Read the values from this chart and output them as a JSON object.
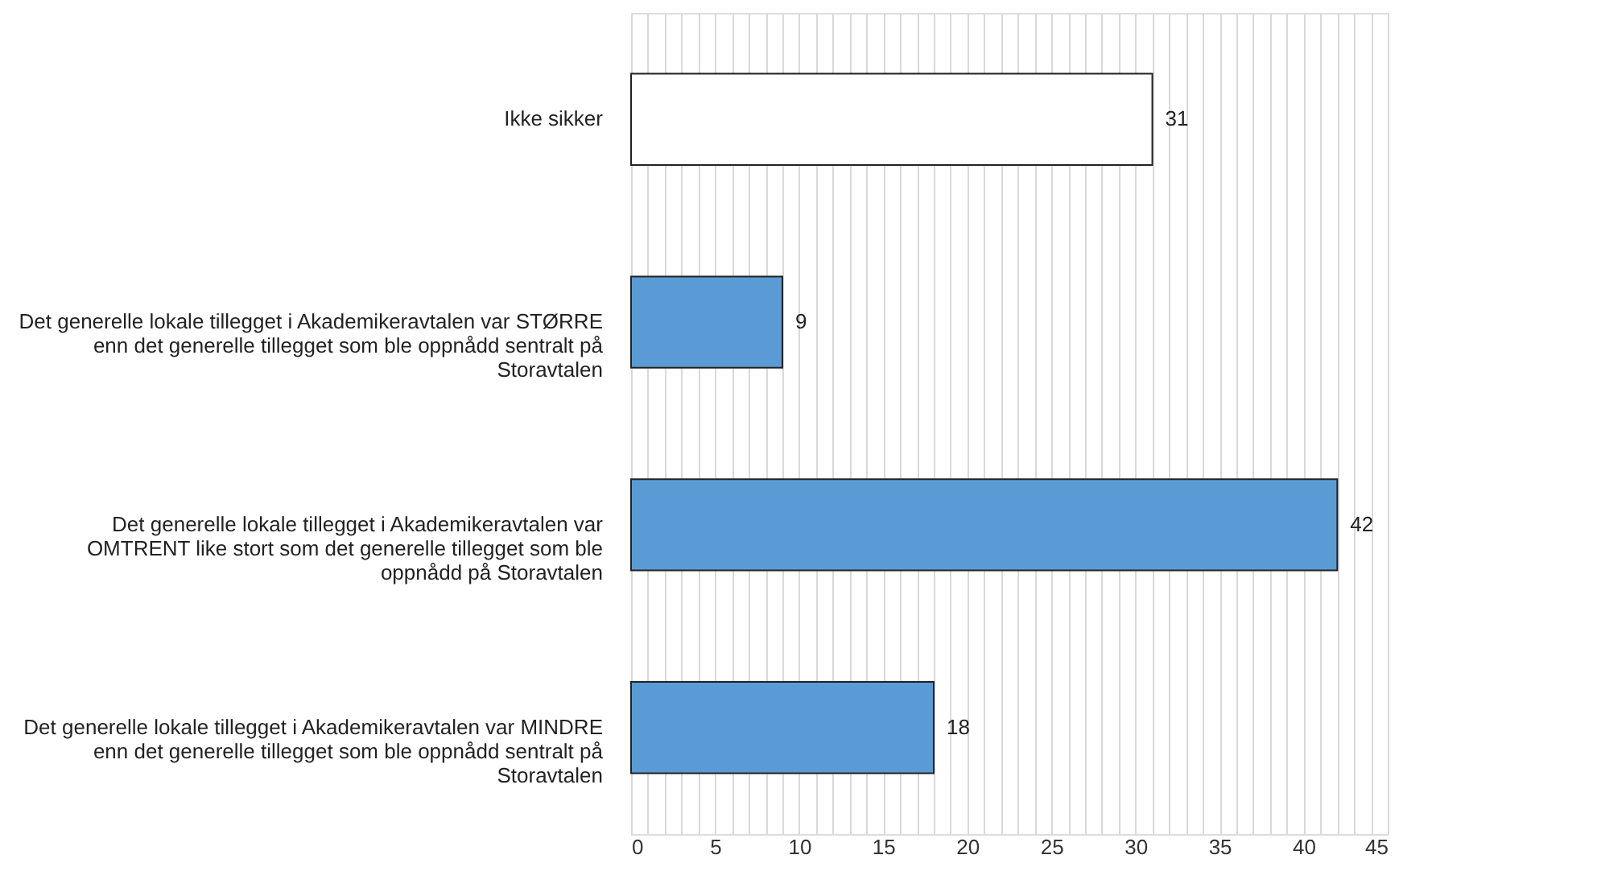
{
  "chart_data": {
    "type": "bar",
    "orientation": "horizontal",
    "categories": [
      "Ikke sikker",
      "Det generelle lokale tillegget i Akademikeravtalen var STØRRE\nenn det generelle tillegget som ble oppnådd sentralt på\nStoravtalen",
      "Det generelle lokale tillegget i Akademikeravtalen var\nOMTRENT like stort som det generelle tillegget som ble\noppnådd på Storavtalen",
      "Det generelle lokale tillegget i Akademikeravtalen var MINDRE\nenn det generelle tillegget som ble oppnådd sentralt på\nStoravtalen"
    ],
    "values": [
      31,
      9,
      42,
      18
    ],
    "colors": [
      "#ffffff",
      "#5b9bd5",
      "#5b9bd5",
      "#5b9bd5"
    ],
    "xlim": [
      0,
      45
    ],
    "xticks": [
      0,
      {
        "value": 1,
        "label": null
      },
      {
        "value": 2,
        "label": null
      },
      {
        "value": 3,
        "label": null
      },
      {
        "value": 4,
        "label": null
      },
      5,
      {
        "value": 6,
        "label": null
      },
      {
        "value": 7,
        "label": null
      },
      {
        "value": 8,
        "label": null
      },
      {
        "value": 9,
        "label": null
      },
      10,
      {
        "value": 11,
        "label": null
      },
      {
        "value": 12,
        "label": null
      },
      {
        "value": 13,
        "label": null
      },
      {
        "value": 14,
        "label": null
      },
      15,
      {
        "value": 16,
        "label": null
      },
      {
        "value": 17,
        "label": null
      },
      {
        "value": 18,
        "label": null
      },
      {
        "value": 19,
        "label": null
      },
      20,
      {
        "value": 21,
        "label": null
      },
      {
        "value": 22,
        "label": null
      },
      {
        "value": 23,
        "label": null
      },
      {
        "value": 24,
        "label": null
      },
      25,
      {
        "value": 26,
        "label": null
      },
      {
        "value": 27,
        "label": null
      },
      {
        "value": 28,
        "label": null
      },
      {
        "value": 29,
        "label": null
      },
      30,
      {
        "value": 31,
        "label": null
      },
      {
        "value": 32,
        "label": null
      },
      {
        "value": 33,
        "label": null
      },
      {
        "value": 34,
        "label": null
      },
      35,
      {
        "value": 36,
        "label": null
      },
      {
        "value": 37,
        "label": null
      },
      {
        "value": 38,
        "label": null
      },
      {
        "value": 39,
        "label": null
      },
      40,
      {
        "value": 41,
        "label": null
      },
      {
        "value": 42,
        "label": null
      },
      {
        "value": 43,
        "label": null
      },
      {
        "value": 44,
        "label": null
      },
      45
    ],
    "grid": "x",
    "data_labels": true
  }
}
